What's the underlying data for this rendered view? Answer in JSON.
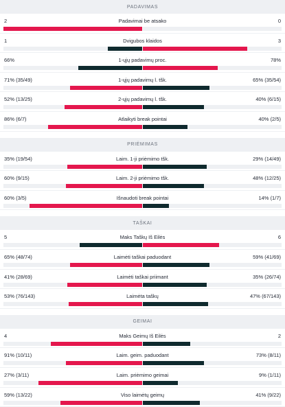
{
  "colors": {
    "red": "#e4174d",
    "dark": "#0f2a2e",
    "track": "#eef0f3"
  },
  "sections": [
    {
      "title": "PADAVIMAS",
      "rows": [
        {
          "label": "Padavimai be atsako",
          "left": "2",
          "right": "0",
          "left_fill": 1.0,
          "left_color": "red",
          "right_fill": 0.0,
          "right_color": "dark"
        },
        {
          "label": "Dvigubos klaidos",
          "left": "1",
          "right": "3",
          "left_fill": 0.25,
          "left_color": "dark",
          "right_fill": 0.75,
          "right_color": "red"
        },
        {
          "label": "1-ųjų padavimų proc.",
          "left": "66%",
          "right": "78%",
          "left_fill": 0.46,
          "left_color": "dark",
          "right_fill": 0.54,
          "right_color": "red"
        },
        {
          "label": "1-ųjų padavimų l. tšk.",
          "left": "71% (35/49)",
          "right": "65% (35/54)",
          "left_fill": 0.52,
          "left_color": "red",
          "right_fill": 0.48,
          "right_color": "dark"
        },
        {
          "label": "2-ųjų padavimų l. tšk.",
          "left": "52% (13/25)",
          "right": "40% (6/15)",
          "left_fill": 0.56,
          "left_color": "red",
          "right_fill": 0.44,
          "right_color": "dark"
        },
        {
          "label": "Atlaikyti break pointai",
          "left": "86% (6/7)",
          "right": "40% (2/5)",
          "left_fill": 0.68,
          "left_color": "red",
          "right_fill": 0.32,
          "right_color": "dark"
        }
      ]
    },
    {
      "title": "PRIĖMIMAS",
      "rows": [
        {
          "label": "Laim. 1-ji priėmimo tšk.",
          "left": "35% (19/54)",
          "right": "29% (14/49)",
          "left_fill": 0.54,
          "left_color": "red",
          "right_fill": 0.46,
          "right_color": "dark"
        },
        {
          "label": "Laim. 2-ji priėmimo tšk.",
          "left": "60% (9/15)",
          "right": "48% (12/25)",
          "left_fill": 0.55,
          "left_color": "red",
          "right_fill": 0.44,
          "right_color": "dark"
        },
        {
          "label": "Išnaudoti break pointai",
          "left": "60% (3/5)",
          "right": "14% (1/7)",
          "left_fill": 0.81,
          "left_color": "red",
          "right_fill": 0.19,
          "right_color": "dark"
        }
      ]
    },
    {
      "title": "TAŠKAI",
      "rows": [
        {
          "label": "Maks Taškų Iš Eilės",
          "left": "5",
          "right": "6",
          "left_fill": 0.45,
          "left_color": "dark",
          "right_fill": 0.55,
          "right_color": "red"
        },
        {
          "label": "Laimėti taškai paduodant",
          "left": "65% (48/74)",
          "right": "59% (41/69)",
          "left_fill": 0.52,
          "left_color": "red",
          "right_fill": 0.48,
          "right_color": "dark"
        },
        {
          "label": "Laimėti taškai priimant",
          "left": "41% (28/69)",
          "right": "35% (26/74)",
          "left_fill": 0.54,
          "left_color": "red",
          "right_fill": 0.46,
          "right_color": "dark"
        },
        {
          "label": "Laimėta taškų",
          "left": "53% (76/143)",
          "right": "47% (67/143)",
          "left_fill": 0.53,
          "left_color": "red",
          "right_fill": 0.47,
          "right_color": "dark"
        }
      ]
    },
    {
      "title": "GEIMAI",
      "rows": [
        {
          "label": "Maks Geimų Iš Eilės",
          "left": "4",
          "right": "2",
          "left_fill": 0.66,
          "left_color": "red",
          "right_fill": 0.34,
          "right_color": "dark"
        },
        {
          "label": "Laim. geim. paduodant",
          "left": "91% (10/11)",
          "right": "73% (8/11)",
          "left_fill": 0.55,
          "left_color": "red",
          "right_fill": 0.44,
          "right_color": "dark"
        },
        {
          "label": "Laim. priėmimo geimai",
          "left": "27% (3/11)",
          "right": "9% (1/11)",
          "left_fill": 0.75,
          "left_color": "red",
          "right_fill": 0.25,
          "right_color": "dark"
        },
        {
          "label": "Viso laimėtų geimų",
          "left": "59% (13/22)",
          "right": "41% (9/22)",
          "left_fill": 0.59,
          "left_color": "red",
          "right_fill": 0.41,
          "right_color": "dark"
        }
      ]
    }
  ]
}
